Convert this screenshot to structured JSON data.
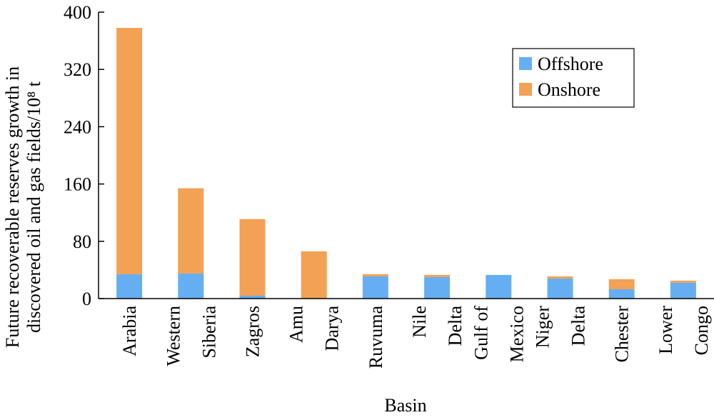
{
  "chart_data": {
    "type": "stacked_bar",
    "x_label": "Basin",
    "y_label": [
      "Future recoverable reserves growth in",
      "discovered oil and gas fields/10⁸ t"
    ],
    "categories": [
      "Arabia",
      "Western\nSiberia",
      "Zagros",
      "Amu\nDarya",
      "Ruvuma",
      "Nile\nDelta",
      "Gulf of\nMexico",
      "Niger\nDelta",
      "Chester",
      "Lower\nCongo"
    ],
    "series": [
      {
        "name": "Offshore",
        "color": "#66aef2",
        "values": [
          34,
          35,
          4,
          0,
          31,
          30,
          33,
          28,
          13,
          22
        ]
      },
      {
        "name": "Onshore",
        "color": "#f2a155",
        "values": [
          344,
          119,
          107,
          66,
          3,
          3,
          0,
          3,
          14,
          3
        ]
      }
    ],
    "ylim": [
      0,
      400
    ],
    "yticks": [
      0,
      80,
      160,
      240,
      320,
      400
    ],
    "legend": "upper right"
  }
}
